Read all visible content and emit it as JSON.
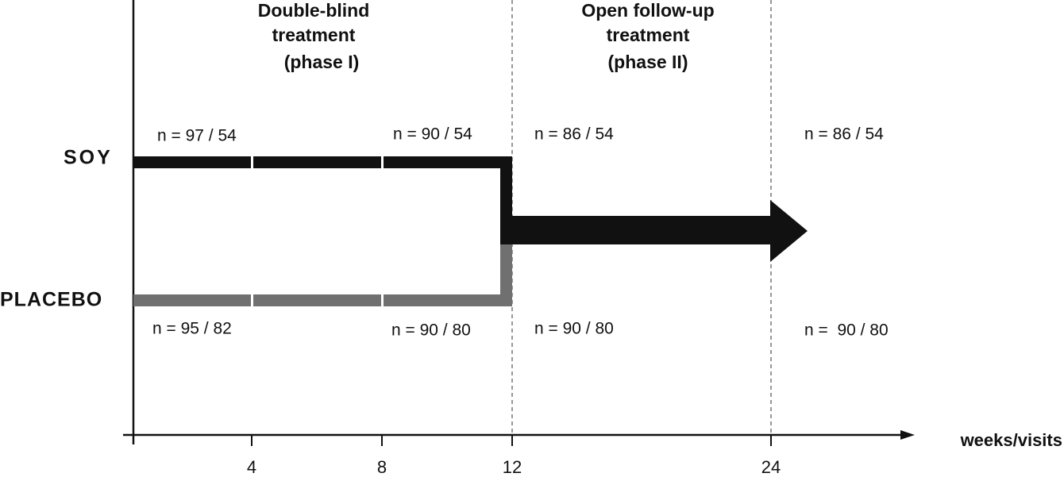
{
  "phases": [
    {
      "lines": [
        "Double-blind",
        "treatment",
        "(phase I)"
      ]
    },
    {
      "lines": [
        "Open follow-up",
        "treatment",
        "(phase II)"
      ]
    }
  ],
  "groups": [
    {
      "label": "SOY",
      "counts": [
        "n = 97 / 54",
        "n = 90 / 54",
        "n = 86 / 54",
        "n = 86 / 54"
      ]
    },
    {
      "label": "PLACEBO",
      "counts": [
        "n = 95 / 82",
        "n = 90 / 80",
        "n = 90 / 80",
        "n =  90 / 80"
      ]
    }
  ],
  "axis": {
    "ticks": [
      "4",
      "8",
      "12",
      "24"
    ],
    "label": "weeks/visits"
  }
}
